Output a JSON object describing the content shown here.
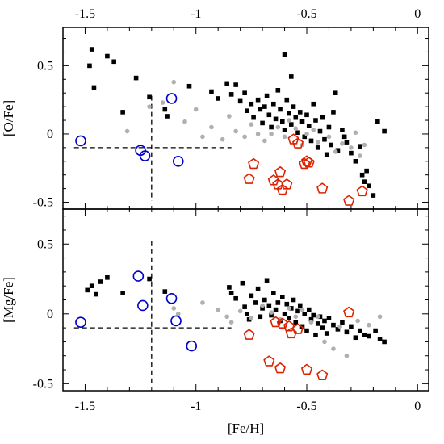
{
  "chart_data": [
    {
      "type": "scatter",
      "panel": "top",
      "ylabel": "[O/Fe]",
      "xlim": [
        -1.6,
        0.05
      ],
      "ylim": [
        -0.55,
        0.78
      ],
      "top_axis_ticks": [
        "-1.5",
        "-1",
        "-0.5",
        "0"
      ],
      "yticks": [
        "-0.5",
        "0",
        "0.5"
      ],
      "series": [
        {
          "marker": "square",
          "color": "#000000",
          "points": [
            [
              -1.47,
              0.62
            ],
            [
              -1.4,
              0.57
            ],
            [
              -1.37,
              0.53
            ],
            [
              -1.48,
              0.5
            ],
            [
              -1.46,
              0.34
            ],
            [
              -1.27,
              0.41
            ],
            [
              -1.33,
              0.16
            ],
            [
              -1.21,
              0.27
            ],
            [
              -1.14,
              0.18
            ],
            [
              -1.13,
              0.13
            ],
            [
              -1.03,
              0.35
            ],
            [
              -0.93,
              0.31
            ],
            [
              -0.86,
              0.37
            ],
            [
              -0.9,
              0.26
            ],
            [
              -0.84,
              0.29
            ],
            [
              -0.82,
              0.36
            ],
            [
              -0.8,
              0.24
            ],
            [
              -0.78,
              0.3
            ],
            [
              -0.77,
              0.17
            ],
            [
              -0.75,
              0.22
            ],
            [
              -0.74,
              0.12
            ],
            [
              -0.72,
              0.25
            ],
            [
              -0.71,
              0.18
            ],
            [
              -0.7,
              0.08
            ],
            [
              -0.69,
              0.2
            ],
            [
              -0.68,
              0.28
            ],
            [
              -0.67,
              0.14
            ],
            [
              -0.66,
              0.05
            ],
            [
              -0.65,
              0.22
            ],
            [
              -0.64,
              0.11
            ],
            [
              -0.63,
              0.32
            ],
            [
              -0.62,
              0.18
            ],
            [
              -0.61,
              0.09
            ],
            [
              -0.6,
              0.58
            ],
            [
              -0.6,
              0.03
            ],
            [
              -0.59,
              0.25
            ],
            [
              -0.58,
              0.15
            ],
            [
              -0.57,
              0.42
            ],
            [
              -0.57,
              0.07
            ],
            [
              -0.56,
              0.2
            ],
            [
              -0.55,
              0.12
            ],
            [
              -0.54,
              0.01
            ],
            [
              -0.53,
              0.16
            ],
            [
              -0.52,
              0.09
            ],
            [
              -0.51,
              -0.02
            ],
            [
              -0.5,
              0.14
            ],
            [
              -0.49,
              0.06
            ],
            [
              -0.48,
              -0.05
            ],
            [
              -0.47,
              0.22
            ],
            [
              -0.46,
              0.1
            ],
            [
              -0.45,
              -0.1
            ],
            [
              -0.44,
              0.02
            ],
            [
              -0.43,
              0.12
            ],
            [
              -0.42,
              -0.04
            ],
            [
              -0.41,
              -0.15
            ],
            [
              -0.4,
              0.05
            ],
            [
              -0.39,
              -0.08
            ],
            [
              -0.38,
              0.16
            ],
            [
              -0.37,
              0.3
            ],
            [
              -0.36,
              -0.12
            ],
            [
              -0.34,
              0.03
            ],
            [
              -0.33,
              -0.02
            ],
            [
              -0.32,
              -0.06
            ],
            [
              -0.3,
              -0.14
            ],
            [
              -0.28,
              -0.2
            ],
            [
              -0.26,
              -0.09
            ],
            [
              -0.25,
              -0.3
            ],
            [
              -0.24,
              -0.35
            ],
            [
              -0.23,
              -0.27
            ],
            [
              -0.22,
              -0.38
            ],
            [
              -0.2,
              -0.45
            ],
            [
              -0.18,
              0.09
            ],
            [
              -0.15,
              0.02
            ]
          ]
        },
        {
          "marker": "dot",
          "color": "#b0b0b0",
          "points": [
            [
              -1.31,
              0.02
            ],
            [
              -1.21,
              0.2
            ],
            [
              -1.15,
              0.23
            ],
            [
              -1.1,
              0.38
            ],
            [
              -1.05,
              0.09
            ],
            [
              -1.0,
              0.18
            ],
            [
              -0.97,
              -0.02
            ],
            [
              -0.93,
              0.05
            ],
            [
              -0.88,
              -0.04
            ],
            [
              -0.85,
              0.13
            ],
            [
              -0.82,
              0.02
            ],
            [
              -0.78,
              -0.02
            ],
            [
              -0.75,
              0.07
            ],
            [
              -0.72,
              0.0
            ],
            [
              -0.69,
              -0.05
            ],
            [
              -0.66,
              0.0
            ],
            [
              -0.63,
              0.05
            ],
            [
              -0.6,
              -0.02
            ],
            [
              -0.58,
              0.1
            ],
            [
              -0.55,
              0.04
            ],
            [
              -0.52,
              -0.08
            ],
            [
              -0.5,
              0.0
            ],
            [
              -0.47,
              0.03
            ],
            [
              -0.45,
              -0.06
            ],
            [
              -0.4,
              -0.02
            ],
            [
              -0.37,
              -0.13
            ],
            [
              -0.34,
              -0.07
            ],
            [
              -0.3,
              -0.1
            ],
            [
              -0.28,
              0.01
            ],
            [
              -0.26,
              -0.16
            ],
            [
              -0.24,
              -0.08
            ]
          ]
        },
        {
          "marker": "open-circle",
          "color": "#0000cc",
          "points": [
            [
              -1.52,
              -0.05
            ],
            [
              -1.25,
              -0.12
            ],
            [
              -1.23,
              -0.16
            ],
            [
              -1.11,
              0.26
            ],
            [
              -1.08,
              -0.2
            ]
          ]
        },
        {
          "marker": "open-pentagon",
          "color": "#dd2200",
          "points": [
            [
              -0.76,
              -0.33
            ],
            [
              -0.74,
              -0.22
            ],
            [
              -0.65,
              -0.34
            ],
            [
              -0.63,
              -0.37
            ],
            [
              -0.62,
              -0.28
            ],
            [
              -0.61,
              -0.41
            ],
            [
              -0.59,
              -0.37
            ],
            [
              -0.56,
              -0.04
            ],
            [
              -0.54,
              -0.07
            ],
            [
              -0.51,
              -0.22
            ],
            [
              -0.5,
              -0.2
            ],
            [
              -0.49,
              -0.21
            ],
            [
              -0.43,
              -0.4
            ],
            [
              -0.31,
              -0.49
            ],
            [
              -0.25,
              -0.42
            ]
          ]
        }
      ],
      "guides": {
        "horizontal": {
          "y": -0.1,
          "x_from": -1.55,
          "x_to": -0.84
        },
        "vertical": {
          "x": -1.2,
          "y_from": 0.28,
          "y_to": -0.49
        }
      }
    },
    {
      "type": "scatter",
      "panel": "bottom",
      "xlabel": "[Fe/H]",
      "ylabel": "[Mg/Fe]",
      "xlim": [
        -1.6,
        0.05
      ],
      "ylim": [
        -0.55,
        0.75
      ],
      "xticks": [
        "-1.5",
        "-1",
        "-0.5",
        "0"
      ],
      "yticks": [
        "-0.5",
        "0",
        "0.5"
      ],
      "series": [
        {
          "marker": "square",
          "color": "#000000",
          "points": [
            [
              -1.49,
              0.17
            ],
            [
              -1.47,
              0.2
            ],
            [
              -1.45,
              0.14
            ],
            [
              -1.43,
              0.23
            ],
            [
              -1.4,
              0.26
            ],
            [
              -1.33,
              0.15
            ],
            [
              -1.21,
              0.25
            ],
            [
              -1.14,
              0.16
            ],
            [
              -0.85,
              0.19
            ],
            [
              -0.84,
              0.15
            ],
            [
              -0.82,
              0.11
            ],
            [
              -0.79,
              0.22
            ],
            [
              -0.78,
              0.05
            ],
            [
              -0.77,
              0.0
            ],
            [
              -0.76,
              -0.04
            ],
            [
              -0.75,
              0.13
            ],
            [
              -0.73,
              0.08
            ],
            [
              -0.72,
              0.18
            ],
            [
              -0.71,
              -0.02
            ],
            [
              -0.7,
              0.04
            ],
            [
              -0.69,
              0.1
            ],
            [
              -0.68,
              0.24
            ],
            [
              -0.67,
              0.06
            ],
            [
              -0.66,
              -0.01
            ],
            [
              -0.65,
              0.15
            ],
            [
              -0.64,
              0.03
            ],
            [
              -0.63,
              0.08
            ],
            [
              -0.62,
              -0.05
            ],
            [
              -0.61,
              0.12
            ],
            [
              -0.6,
              0.0
            ],
            [
              -0.59,
              0.07
            ],
            [
              -0.58,
              -0.03
            ],
            [
              -0.57,
              0.04
            ],
            [
              -0.56,
              0.1
            ],
            [
              -0.55,
              -0.06
            ],
            [
              -0.54,
              0.02
            ],
            [
              -0.53,
              0.06
            ],
            [
              -0.52,
              -0.09
            ],
            [
              -0.51,
              0.0
            ],
            [
              -0.5,
              -0.12
            ],
            [
              -0.49,
              0.03
            ],
            [
              -0.48,
              -0.04
            ],
            [
              -0.47,
              -0.01
            ],
            [
              -0.46,
              -0.15
            ],
            [
              -0.45,
              -0.07
            ],
            [
              -0.44,
              -0.02
            ],
            [
              -0.43,
              -0.1
            ],
            [
              -0.42,
              -0.05
            ],
            [
              -0.41,
              -0.14
            ],
            [
              -0.4,
              -0.03
            ],
            [
              -0.38,
              -0.08
            ],
            [
              -0.36,
              -0.11
            ],
            [
              -0.34,
              -0.06
            ],
            [
              -0.32,
              -0.13
            ],
            [
              -0.3,
              -0.09
            ],
            [
              -0.28,
              -0.17
            ],
            [
              -0.26,
              -0.12
            ],
            [
              -0.24,
              -0.15
            ],
            [
              -0.22,
              -0.16
            ],
            [
              -0.19,
              -0.12
            ],
            [
              -0.17,
              -0.18
            ],
            [
              -0.15,
              -0.2
            ]
          ]
        },
        {
          "marker": "dot",
          "color": "#b0b0b0",
          "points": [
            [
              -1.1,
              0.04
            ],
            [
              -1.08,
              0.0
            ],
            [
              -0.97,
              0.08
            ],
            [
              -0.9,
              0.03
            ],
            [
              -0.86,
              -0.02
            ],
            [
              -0.84,
              -0.06
            ],
            [
              -0.8,
              0.02
            ],
            [
              -0.75,
              -0.03
            ],
            [
              -0.7,
              0.06
            ],
            [
              -0.66,
              0.01
            ],
            [
              -0.62,
              -0.04
            ],
            [
              -0.58,
              0.04
            ],
            [
              -0.55,
              -0.02
            ],
            [
              -0.52,
              0.03
            ],
            [
              -0.48,
              -0.06
            ],
            [
              -0.45,
              -0.02
            ],
            [
              -0.42,
              -0.2
            ],
            [
              -0.38,
              -0.25
            ],
            [
              -0.35,
              -0.09
            ],
            [
              -0.32,
              -0.3
            ],
            [
              -0.27,
              -0.05
            ],
            [
              -0.22,
              -0.08
            ],
            [
              -0.17,
              -0.02
            ]
          ]
        },
        {
          "marker": "open-circle",
          "color": "#0000cc",
          "points": [
            [
              -1.52,
              -0.06
            ],
            [
              -1.26,
              0.27
            ],
            [
              -1.24,
              0.06
            ],
            [
              -1.11,
              0.11
            ],
            [
              -1.09,
              -0.05
            ],
            [
              -1.02,
              -0.23
            ]
          ]
        },
        {
          "marker": "open-pentagon",
          "color": "#dd2200",
          "points": [
            [
              -0.76,
              -0.15
            ],
            [
              -0.67,
              -0.34
            ],
            [
              -0.64,
              -0.06
            ],
            [
              -0.62,
              -0.39
            ],
            [
              -0.61,
              -0.07
            ],
            [
              -0.58,
              -0.09
            ],
            [
              -0.57,
              -0.14
            ],
            [
              -0.54,
              -0.11
            ],
            [
              -0.5,
              -0.4
            ],
            [
              -0.43,
              -0.44
            ],
            [
              -0.31,
              0.01
            ]
          ]
        }
      ],
      "guides": {
        "horizontal": {
          "y": -0.1,
          "x_from": -1.55,
          "x_to": -0.84
        },
        "vertical": {
          "x": -1.2,
          "y_from": 0.52,
          "y_to": -0.52
        }
      }
    }
  ]
}
